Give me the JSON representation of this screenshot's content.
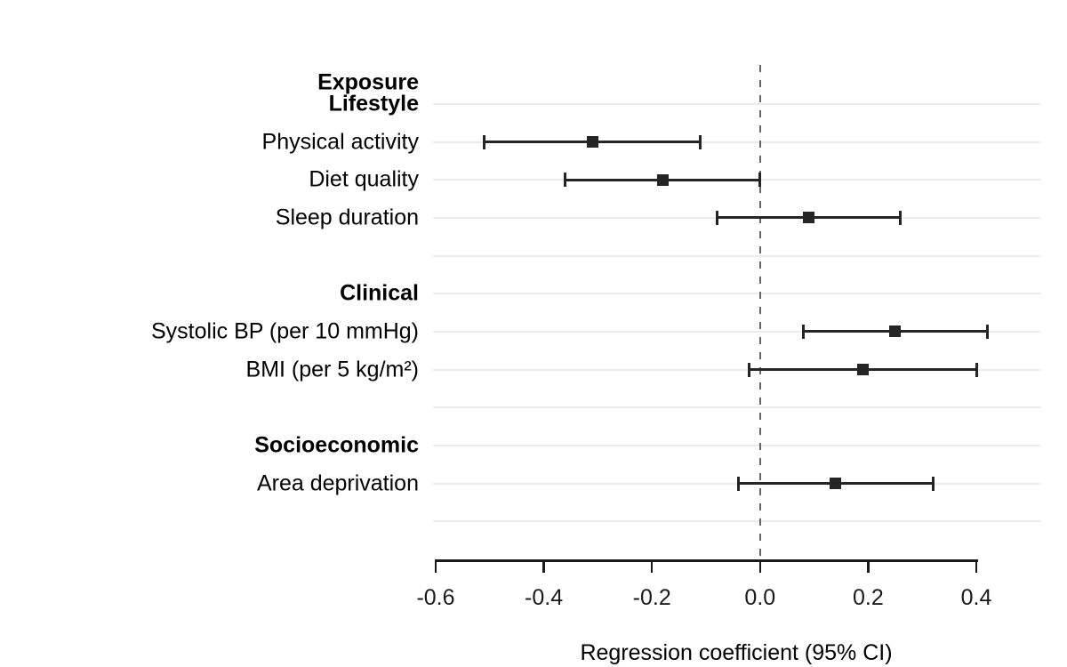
{
  "chart_data": {
    "type": "scatter",
    "variant": "forest-plot",
    "title": "",
    "xlabel": "Regression coefficient (95% CI)",
    "ylabel": "",
    "column_header": "Exposure",
    "xlim": [
      -0.6,
      0.4
    ],
    "reference_line": 0.0,
    "grid": "horizontal",
    "legend_position": "none",
    "x_ticks": [
      {
        "value": -0.6,
        "label": "-0.6"
      },
      {
        "value": -0.4,
        "label": "-0.4"
      },
      {
        "value": -0.2,
        "label": "-0.2"
      },
      {
        "value": 0.0,
        "label": "0.0"
      },
      {
        "value": 0.2,
        "label": "0.2"
      },
      {
        "value": 0.4,
        "label": "0.4"
      }
    ],
    "rows": [
      {
        "type": "group",
        "label": "Lifestyle"
      },
      {
        "type": "item",
        "label": "Physical activity",
        "estimate": -0.31,
        "lower": -0.51,
        "upper": -0.11
      },
      {
        "type": "item",
        "label": "Diet quality",
        "estimate": -0.18,
        "lower": -0.36,
        "upper": 0.0
      },
      {
        "type": "item",
        "label": "Sleep duration",
        "estimate": 0.09,
        "lower": -0.08,
        "upper": 0.26
      },
      {
        "type": "spacer",
        "label": ""
      },
      {
        "type": "group",
        "label": "Clinical"
      },
      {
        "type": "item",
        "label": "Systolic BP (per 10 mmHg)",
        "estimate": 0.25,
        "lower": 0.08,
        "upper": 0.42
      },
      {
        "type": "item",
        "label": "BMI (per 5 kg/m²)",
        "estimate": 0.19,
        "lower": -0.02,
        "upper": 0.4
      },
      {
        "type": "spacer",
        "label": ""
      },
      {
        "type": "group",
        "label": "Socioeconomic"
      },
      {
        "type": "item",
        "label": "Area deprivation",
        "estimate": 0.14,
        "lower": -0.04,
        "upper": 0.32
      },
      {
        "type": "spacer",
        "label": ""
      }
    ],
    "colors": {
      "marker": "#252525",
      "ci": "#252525",
      "gridline": "#ebebeb",
      "reference_line": "#666666",
      "axis": "#1a1a1a",
      "text": "#000000",
      "background": "#ffffff"
    }
  }
}
